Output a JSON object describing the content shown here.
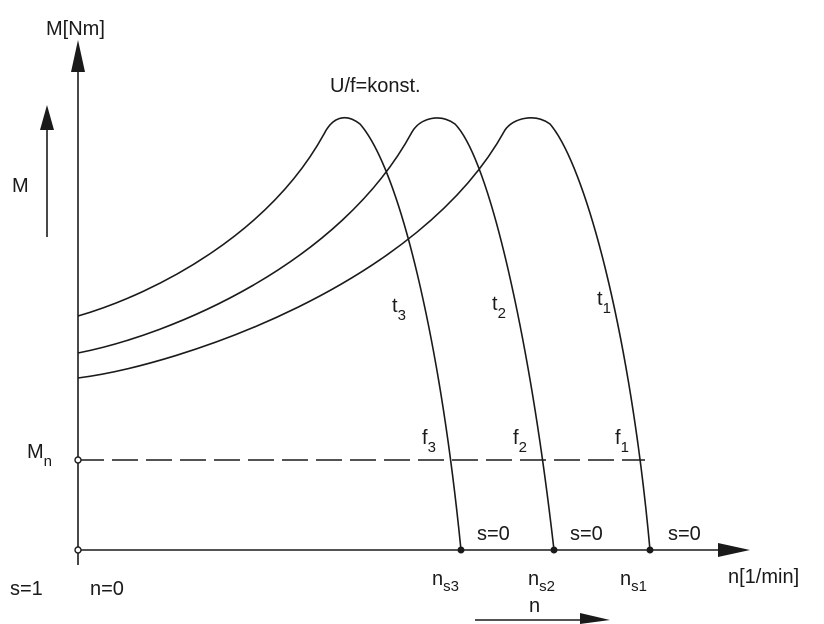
{
  "axes": {
    "y_label": "M[Nm]",
    "x_label": "n[1/min]",
    "m_arrow_label": "M",
    "n_arrow_label": "n"
  },
  "annotation": "U/f=konst.",
  "rated_torque": {
    "base": "M",
    "sub": "n"
  },
  "origin": {
    "slip": "s=1",
    "speed": "n=0"
  },
  "slip_zero_labels": [
    "s=0",
    "s=0",
    "s=0"
  ],
  "curves": [
    {
      "t_base": "t",
      "t_sub": "3",
      "f_base": "f",
      "f_sub": "3",
      "ns_base": "n",
      "ns_sub": "s3"
    },
    {
      "t_base": "t",
      "t_sub": "2",
      "f_base": "f",
      "f_sub": "2",
      "ns_base": "n",
      "ns_sub": "s2"
    },
    {
      "t_base": "t",
      "t_sub": "1",
      "f_base": "f",
      "f_sub": "1",
      "ns_base": "n",
      "ns_sub": "s1"
    }
  ]
}
